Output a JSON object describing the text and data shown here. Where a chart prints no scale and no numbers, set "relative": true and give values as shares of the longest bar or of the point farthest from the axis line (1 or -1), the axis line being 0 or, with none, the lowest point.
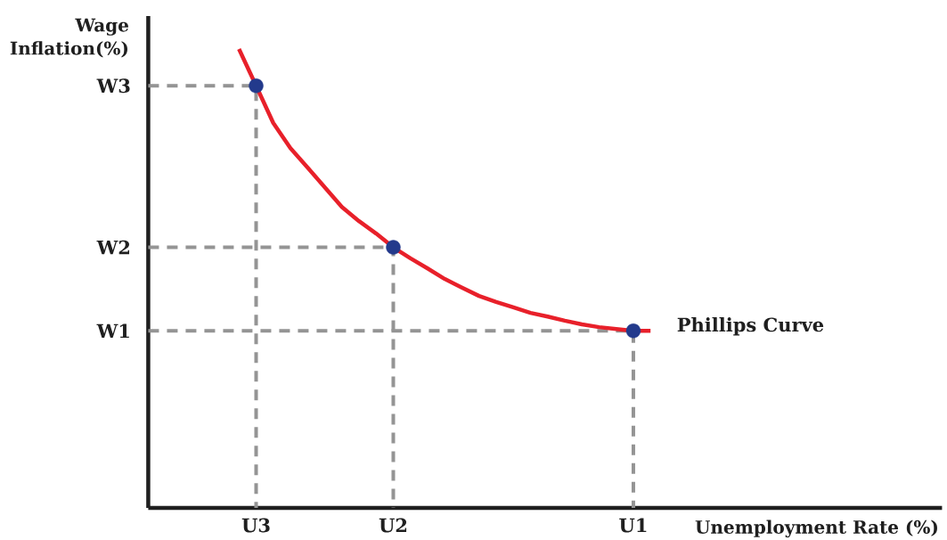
{
  "chart_data": {
    "type": "line",
    "relative": true,
    "xlabel": "Unemployment Rate (%)",
    "ylabel": "Wage Inflation(%)",
    "categories": [
      null,
      null,
      null,
      null,
      null,
      null,
      "U3",
      null,
      null,
      null,
      null,
      null,
      null,
      null,
      "U2",
      null,
      null,
      null,
      null,
      null,
      null,
      null,
      null,
      null,
      null,
      null,
      null,
      null,
      "U1",
      null,
      null,
      null,
      null,
      null,
      null,
      null,
      null,
      null,
      null,
      null,
      null,
      null,
      null,
      null,
      null,
      null,
      null
    ],
    "annotations": [
      "W3",
      "W2",
      "W1"
    ],
    "series": [
      {
        "name": "Phillips Curve",
        "color": "#e8202a",
        "values": [
          null,
          null,
          null,
          null,
          null,
          1,
          0.92,
          0.839,
          0.784,
          0.742,
          0.699,
          0.656,
          0.625,
          0.598,
          0.568,
          0.544,
          0.522,
          0.499,
          0.48,
          0.462,
          0.449,
          0.437,
          0.425,
          0.417,
          0.408,
          0.4,
          0.394,
          0.39,
          0.386,
          0.386,
          null,
          null,
          null,
          null,
          null,
          null,
          null,
          null,
          null,
          null,
          null,
          null,
          null,
          null,
          null,
          null,
          null
        ]
      },
      {
        "type": "scatter",
        "color": "#233a8c",
        "marker": "circle",
        "values": [
          null,
          null,
          null,
          null,
          null,
          null,
          0.92,
          null,
          null,
          null,
          null,
          null,
          null,
          null,
          0.568,
          null,
          null,
          null,
          null,
          null,
          null,
          null,
          null,
          null,
          null,
          null,
          null,
          null,
          0.386,
          null,
          null,
          null,
          null,
          null,
          null,
          null,
          null,
          null,
          null,
          null,
          null,
          null,
          null,
          null,
          null,
          null,
          null
        ]
      }
    ]
  }
}
